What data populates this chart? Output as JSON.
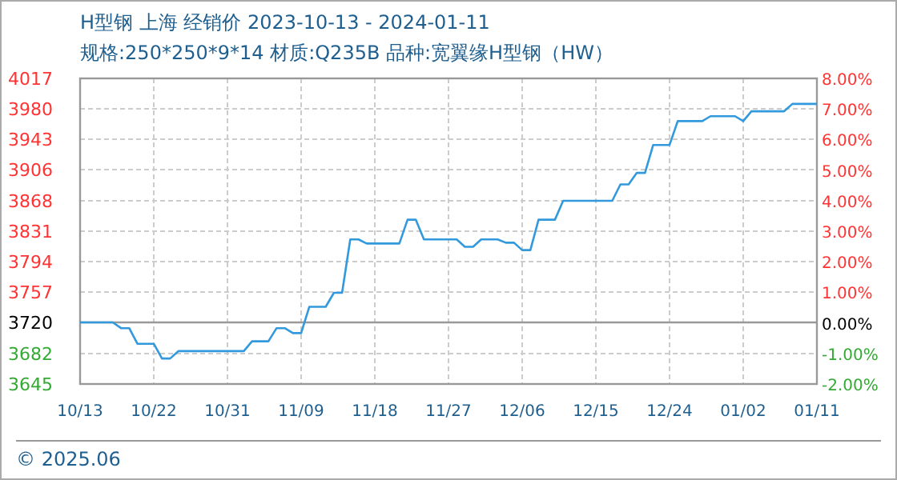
{
  "chart_data": {
    "type": "line",
    "title": "H型钢 上海 经销价 2023-10-13 - 2024-01-11",
    "subtitle": "规格:250*250*9*14 材质:Q235B 品种:宽翼缘H型钢（HW）",
    "x": [
      "2023-10-13",
      "2023-10-17",
      "2023-10-18",
      "2023-10-19",
      "2023-10-20",
      "2023-10-22",
      "2023-10-23",
      "2023-10-24",
      "2023-10-25",
      "2023-11-02",
      "2023-11-03",
      "2023-11-05",
      "2023-11-06",
      "2023-11-07",
      "2023-11-08",
      "2023-11-09",
      "2023-11-10",
      "2023-11-12",
      "2023-11-13",
      "2023-11-14",
      "2023-11-15",
      "2023-11-16",
      "2023-11-17",
      "2023-11-21",
      "2023-11-22",
      "2023-11-23",
      "2023-11-24",
      "2023-11-28",
      "2023-11-29",
      "2023-11-30",
      "2023-12-01",
      "2023-12-03",
      "2023-12-04",
      "2023-12-05",
      "2023-12-06",
      "2023-12-07",
      "2023-12-08",
      "2023-12-10",
      "2023-12-11",
      "2023-12-17",
      "2023-12-18",
      "2023-12-19",
      "2023-12-20",
      "2023-12-21",
      "2023-12-22",
      "2023-12-24",
      "2023-12-25",
      "2023-12-28",
      "2023-12-29",
      "2024-01-01",
      "2024-01-02",
      "2024-01-03",
      "2024-01-07",
      "2024-01-08",
      "2024-01-11"
    ],
    "series": [
      {
        "color": "#3399dd",
        "values": [
          3720,
          3720,
          3713,
          3713,
          3694,
          3694,
          3676,
          3676,
          3685,
          3685,
          3697,
          3697,
          3713,
          3713,
          3707,
          3707,
          3739,
          3739,
          3756,
          3756,
          3821,
          3821,
          3816,
          3816,
          3845,
          3845,
          3821,
          3821,
          3812,
          3812,
          3821,
          3821,
          3817,
          3817,
          3808,
          3808,
          3845,
          3845,
          3868,
          3868,
          3888,
          3888,
          3902,
          3902,
          3936,
          3936,
          3965,
          3965,
          3971,
          3971,
          3965,
          3977,
          3977,
          3986,
          3986
        ]
      }
    ],
    "xlim": [
      "2023-10-13",
      "2024-01-11"
    ],
    "xticks": [
      {
        "value": "2023-10-13",
        "label": "10/13"
      },
      {
        "value": "2023-10-22",
        "label": "10/22"
      },
      {
        "value": "2023-10-31",
        "label": "10/31"
      },
      {
        "value": "2023-11-09",
        "label": "11/09"
      },
      {
        "value": "2023-11-18",
        "label": "11/18"
      },
      {
        "value": "2023-11-27",
        "label": "11/27"
      },
      {
        "value": "2023-12-06",
        "label": "12/06"
      },
      {
        "value": "2023-12-15",
        "label": "12/15"
      },
      {
        "value": "2023-12-24",
        "label": "12/24"
      },
      {
        "value": "2024-01-02",
        "label": "01/02"
      },
      {
        "value": "2024-01-11",
        "label": "01/11"
      }
    ],
    "ylim": [
      3645,
      4017
    ],
    "yticks": [
      3645,
      3682,
      3720,
      3757,
      3794,
      3831,
      3868,
      3906,
      3943,
      3980,
      4017
    ],
    "y2lim": [
      -2,
      8
    ],
    "y2ticks": [
      {
        "value": -2,
        "label": "-2.00%"
      },
      {
        "value": -1,
        "label": "-1.00%"
      },
      {
        "value": 0,
        "label": "0.00%"
      },
      {
        "value": 1,
        "label": "1.00%"
      },
      {
        "value": 2,
        "label": "2.00%"
      },
      {
        "value": 3,
        "label": "3.00%"
      },
      {
        "value": 4,
        "label": "4.00%"
      },
      {
        "value": 5,
        "label": "5.00%"
      },
      {
        "value": 6,
        "label": "6.00%"
      },
      {
        "value": 7,
        "label": "7.00%"
      },
      {
        "value": 8,
        "label": "8.00%"
      }
    ],
    "ref_lines": [
      {
        "axis": "y",
        "value": 3720,
        "color": "#999999"
      }
    ],
    "grid": true,
    "line_style": "solid",
    "annotations": [
      "© 2025.06"
    ]
  }
}
